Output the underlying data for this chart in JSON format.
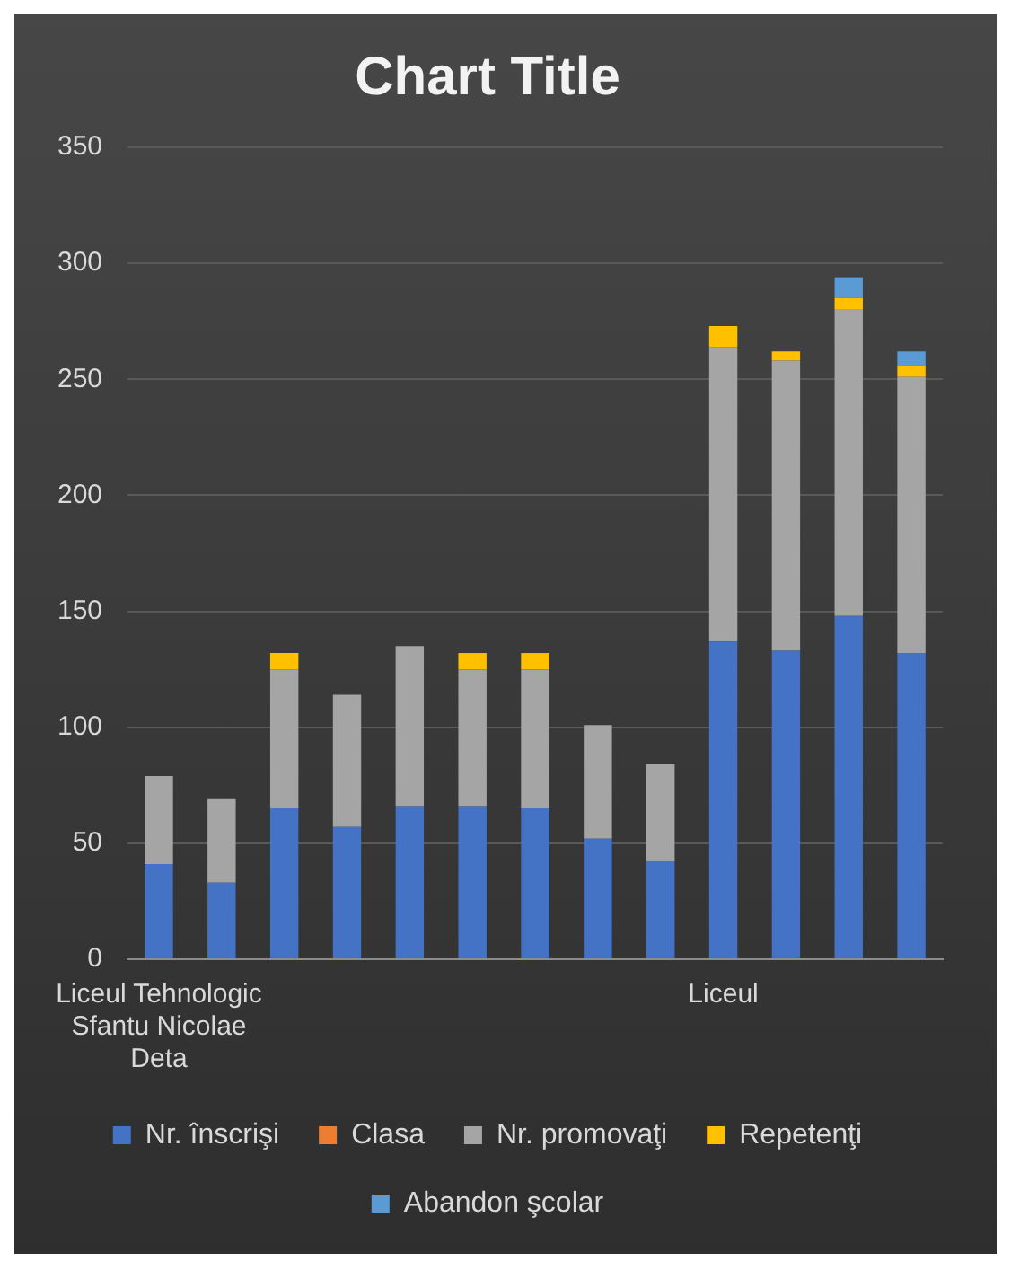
{
  "chart_data": {
    "type": "bar",
    "title": "Chart Title",
    "stacked": true,
    "categories": [
      "Liceul Tehnologic Sfantu Nicolae Deta",
      null,
      null,
      null,
      null,
      null,
      null,
      null,
      null,
      "Liceul",
      null,
      null,
      null
    ],
    "series": [
      {
        "name": "Nr. înscrişi",
        "color": "#4472c4",
        "values": [
          41,
          33,
          65,
          57,
          66,
          66,
          65,
          52,
          42,
          137,
          133,
          148,
          132
        ]
      },
      {
        "name": "Clasa",
        "color": "#ed7d31",
        "values": [
          0,
          0,
          0,
          0,
          0,
          0,
          0,
          0,
          0,
          0,
          0,
          0,
          0
        ]
      },
      {
        "name": "Nr. promovaţi",
        "color": "#a5a5a5",
        "values": [
          38,
          36,
          60,
          57,
          69,
          59,
          60,
          49,
          42,
          127,
          125,
          132,
          119
        ]
      },
      {
        "name": "Repetenţi",
        "color": "#ffc000",
        "values": [
          0,
          0,
          7,
          0,
          0,
          7,
          7,
          0,
          0,
          9,
          4,
          5,
          5
        ]
      },
      {
        "name": "Abandon şcolar",
        "color": "#5b9bd5",
        "values": [
          0,
          0,
          0,
          0,
          0,
          0,
          0,
          0,
          0,
          0,
          0,
          9,
          6
        ]
      }
    ],
    "ylim": [
      0,
      350
    ],
    "yticks": [
      0,
      50,
      100,
      150,
      200,
      250,
      300,
      350
    ],
    "grid": "y",
    "legend": "bottom"
  }
}
